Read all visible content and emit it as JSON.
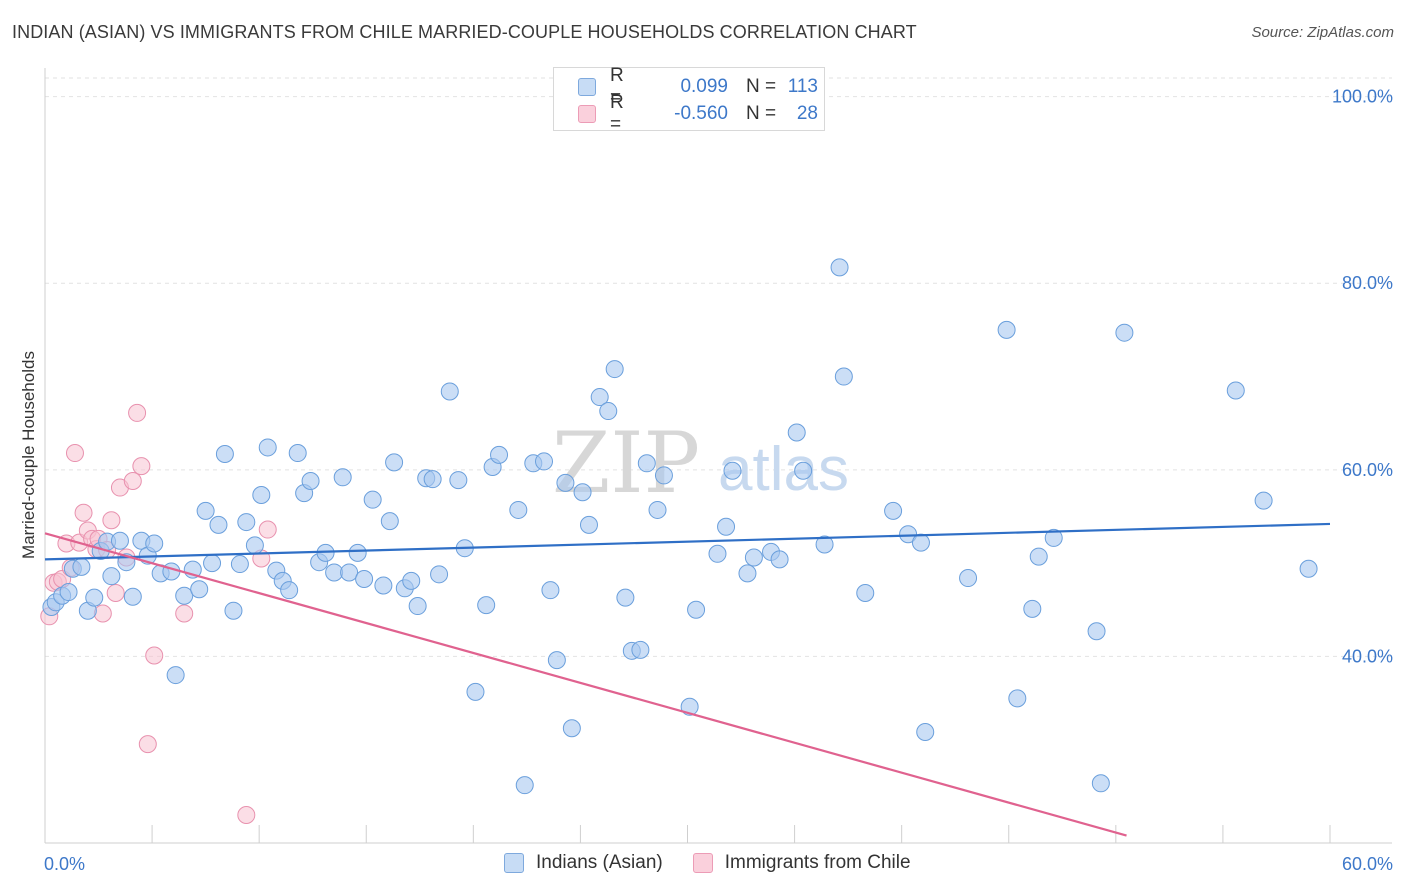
{
  "header": {
    "title": "INDIAN (ASIAN) VS IMMIGRANTS FROM CHILE MARRIED-COUPLE HOUSEHOLDS CORRELATION CHART",
    "source": "Source: ZipAtlas.com"
  },
  "watermark": {
    "zip": "ZIP",
    "atlas": "atlas"
  },
  "stats_legend": {
    "rows": [
      {
        "r_label": "R =",
        "r_value": "0.099",
        "n_label": "N =",
        "n_value": "113",
        "color": "#a8c8f0"
      },
      {
        "r_label": "R =",
        "r_value": "-0.560",
        "n_label": "N =",
        "n_value": "28",
        "color": "#f5b8c9"
      }
    ]
  },
  "bottom_legend": {
    "items": [
      {
        "label": "Indians (Asian)",
        "color": "#a8c8f0"
      },
      {
        "label": "Immigrants from Chile",
        "color": "#f5b8c9"
      }
    ]
  },
  "colors": {
    "blue_fill": "#a8c8f0",
    "blue_stroke": "#6a9fdc",
    "blue_line": "#2f6fc6",
    "pink_fill": "#f7c3d2",
    "pink_stroke": "#e891ae",
    "pink_line": "#e0628f",
    "grid": "#e2e2e2",
    "axis_text": "#3d78c9"
  },
  "chart_data": {
    "type": "scatter",
    "title": "INDIAN (ASIAN) VS IMMIGRANTS FROM CHILE MARRIED-COUPLE HOUSEHOLDS CORRELATION CHART",
    "xlabel": "",
    "ylabel": "Married-couple Households",
    "xlim": [
      0,
      60
    ],
    "ylim": [
      20,
      102
    ],
    "x_tick_labels": [
      "0.0%",
      "60.0%"
    ],
    "y_ticks": [
      40,
      60,
      80,
      100
    ],
    "y_tick_labels": [
      "40.0%",
      "60.0%",
      "80.0%",
      "100.0%"
    ],
    "series": [
      {
        "name": "Indians (Asian)",
        "trend": {
          "x": [
            0,
            60
          ],
          "y": [
            50.4,
            54.2
          ]
        },
        "points": [
          [
            0.3,
            45.3
          ],
          [
            0.5,
            45.8
          ],
          [
            0.8,
            46.5
          ],
          [
            1.1,
            46.9
          ],
          [
            1.3,
            49.4
          ],
          [
            1.7,
            49.6
          ],
          [
            2.0,
            44.9
          ],
          [
            2.3,
            46.3
          ],
          [
            2.6,
            51.3
          ],
          [
            2.9,
            52.3
          ],
          [
            3.1,
            48.6
          ],
          [
            3.5,
            52.4
          ],
          [
            3.8,
            50.1
          ],
          [
            4.1,
            46.4
          ],
          [
            4.5,
            52.4
          ],
          [
            4.8,
            50.8
          ],
          [
            5.1,
            52.1
          ],
          [
            5.4,
            48.9
          ],
          [
            5.9,
            49.1
          ],
          [
            6.1,
            38.0
          ],
          [
            6.5,
            46.5
          ],
          [
            6.9,
            49.3
          ],
          [
            7.2,
            47.2
          ],
          [
            7.5,
            55.6
          ],
          [
            7.8,
            50.0
          ],
          [
            8.1,
            54.1
          ],
          [
            8.4,
            61.7
          ],
          [
            8.8,
            44.9
          ],
          [
            9.1,
            49.9
          ],
          [
            9.4,
            54.4
          ],
          [
            9.8,
            51.9
          ],
          [
            10.1,
            57.3
          ],
          [
            10.4,
            62.4
          ],
          [
            10.8,
            49.2
          ],
          [
            11.1,
            48.1
          ],
          [
            11.4,
            47.1
          ],
          [
            11.8,
            61.8
          ],
          [
            12.1,
            57.5
          ],
          [
            12.4,
            58.8
          ],
          [
            12.8,
            50.1
          ],
          [
            13.1,
            51.1
          ],
          [
            13.5,
            49.0
          ],
          [
            13.9,
            59.2
          ],
          [
            14.2,
            49.0
          ],
          [
            14.6,
            51.1
          ],
          [
            14.9,
            48.3
          ],
          [
            15.3,
            56.8
          ],
          [
            15.8,
            47.6
          ],
          [
            16.1,
            54.5
          ],
          [
            16.3,
            60.8
          ],
          [
            16.8,
            47.3
          ],
          [
            17.1,
            48.1
          ],
          [
            17.4,
            45.4
          ],
          [
            17.8,
            59.1
          ],
          [
            18.1,
            59.0
          ],
          [
            18.4,
            48.8
          ],
          [
            18.9,
            68.4
          ],
          [
            19.3,
            58.9
          ],
          [
            19.6,
            51.6
          ],
          [
            20.1,
            36.2
          ],
          [
            20.6,
            45.5
          ],
          [
            20.9,
            60.3
          ],
          [
            21.2,
            61.6
          ],
          [
            22.1,
            55.7
          ],
          [
            22.4,
            26.2
          ],
          [
            22.8,
            60.7
          ],
          [
            23.3,
            60.9
          ],
          [
            23.6,
            47.1
          ],
          [
            23.9,
            39.6
          ],
          [
            24.3,
            58.6
          ],
          [
            24.6,
            32.3
          ],
          [
            25.1,
            57.6
          ],
          [
            25.4,
            54.1
          ],
          [
            25.9,
            67.8
          ],
          [
            26.3,
            66.3
          ],
          [
            26.6,
            70.8
          ],
          [
            27.1,
            46.3
          ],
          [
            27.4,
            40.6
          ],
          [
            27.8,
            40.7
          ],
          [
            28.1,
            60.7
          ],
          [
            28.6,
            55.7
          ],
          [
            28.9,
            59.4
          ],
          [
            30.1,
            34.6
          ],
          [
            30.4,
            45.0
          ],
          [
            31.4,
            51.0
          ],
          [
            31.8,
            53.9
          ],
          [
            32.1,
            59.9
          ],
          [
            32.8,
            48.9
          ],
          [
            33.1,
            50.6
          ],
          [
            33.9,
            51.2
          ],
          [
            34.3,
            50.4
          ],
          [
            35.1,
            64.0
          ],
          [
            35.4,
            59.9
          ],
          [
            36.4,
            52.0
          ],
          [
            37.1,
            81.7
          ],
          [
            37.3,
            70.0
          ],
          [
            38.3,
            46.8
          ],
          [
            39.6,
            55.6
          ],
          [
            40.3,
            53.1
          ],
          [
            40.9,
            52.2
          ],
          [
            41.1,
            31.9
          ],
          [
            43.1,
            48.4
          ],
          [
            44.9,
            75.0
          ],
          [
            45.4,
            35.5
          ],
          [
            46.1,
            45.1
          ],
          [
            46.4,
            50.7
          ],
          [
            47.1,
            52.7
          ],
          [
            49.1,
            42.7
          ],
          [
            49.3,
            26.4
          ],
          [
            50.4,
            74.7
          ],
          [
            55.6,
            68.5
          ],
          [
            56.9,
            56.7
          ],
          [
            59.0,
            49.4
          ]
        ]
      },
      {
        "name": "Immigrants from Chile",
        "trend": {
          "x": [
            0,
            50.5
          ],
          "y": [
            53.2,
            20.8
          ]
        },
        "points": [
          [
            0.2,
            44.3
          ],
          [
            0.4,
            47.9
          ],
          [
            0.6,
            48.0
          ],
          [
            0.8,
            48.3
          ],
          [
            1.0,
            52.1
          ],
          [
            1.2,
            49.5
          ],
          [
            1.4,
            61.8
          ],
          [
            1.6,
            52.2
          ],
          [
            1.8,
            55.4
          ],
          [
            2.0,
            53.5
          ],
          [
            2.2,
            52.6
          ],
          [
            2.4,
            51.5
          ],
          [
            2.5,
            52.6
          ],
          [
            2.7,
            44.6
          ],
          [
            2.9,
            51.4
          ],
          [
            3.1,
            54.6
          ],
          [
            3.3,
            46.8
          ],
          [
            3.5,
            58.1
          ],
          [
            3.8,
            50.6
          ],
          [
            4.1,
            58.8
          ],
          [
            4.3,
            66.1
          ],
          [
            4.5,
            60.4
          ],
          [
            4.8,
            30.6
          ],
          [
            5.1,
            40.1
          ],
          [
            6.5,
            44.6
          ],
          [
            10.4,
            53.6
          ],
          [
            10.1,
            50.5
          ],
          [
            9.4,
            23.0
          ]
        ]
      }
    ]
  }
}
